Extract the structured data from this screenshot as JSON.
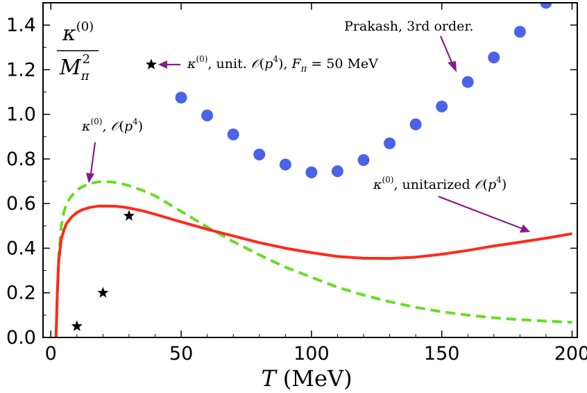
{
  "chart_data": {
    "type": "scatter",
    "title": "",
    "xlabel_var": "T",
    "xlabel_unit": "(MeV)",
    "ylabel_num": "κ⁽⁰⁾",
    "ylabel_den": "Mπ²",
    "xlim": [
      -3,
      202
    ],
    "ylim": [
      0.0,
      1.5
    ],
    "x_ticks": [
      0,
      50,
      100,
      150,
      200
    ],
    "x_tick_labels": [
      "0",
      "50",
      "100",
      "150",
      "200"
    ],
    "y_ticks": [
      0.0,
      0.2,
      0.4,
      0.6,
      0.8,
      1.0,
      1.2,
      1.4
    ],
    "y_tick_labels": [
      "0.0",
      "0.2",
      "0.4",
      "0.6",
      "0.8",
      "1.0",
      "1.2",
      "1.4"
    ],
    "series": [
      {
        "name": "Prakash, 3rd order",
        "kind": "points",
        "color": "#4a63e8",
        "x": [
          50,
          60,
          70,
          80,
          90,
          100,
          110,
          120,
          130,
          140,
          150,
          160,
          170,
          180,
          190
        ],
        "y": [
          1.075,
          0.995,
          0.91,
          0.82,
          0.775,
          0.74,
          0.745,
          0.795,
          0.87,
          0.955,
          1.035,
          1.145,
          1.255,
          1.37,
          1.5
        ]
      },
      {
        "name": "κ(0), unit. O(p4), Fπ = 50 MeV",
        "kind": "stars",
        "color": "#000000",
        "x": [
          10,
          20,
          30
        ],
        "y": [
          0.05,
          0.2,
          0.545
        ]
      },
      {
        "name": "κ(0), O(p4)",
        "kind": "dashed-line",
        "color": "#66dd22",
        "x": [
          2,
          2.5,
          3,
          4,
          5,
          6,
          8,
          10,
          12,
          15,
          18,
          20,
          23,
          25,
          28,
          30,
          35,
          40,
          45,
          50,
          55,
          60,
          70,
          80,
          90,
          100,
          110,
          120,
          130,
          140,
          150,
          160,
          170,
          180,
          190,
          200
        ],
        "y": [
          0.0,
          0.2,
          0.36,
          0.5,
          0.56,
          0.6,
          0.635,
          0.66,
          0.675,
          0.69,
          0.697,
          0.698,
          0.697,
          0.694,
          0.687,
          0.68,
          0.66,
          0.635,
          0.6,
          0.565,
          0.53,
          0.495,
          0.43,
          0.37,
          0.315,
          0.27,
          0.225,
          0.19,
          0.16,
          0.135,
          0.115,
          0.1,
          0.088,
          0.08,
          0.073,
          0.068
        ]
      },
      {
        "name": "κ(0), unitarized O(p4)",
        "kind": "line",
        "color": "#ff2a1a",
        "x": [
          2,
          2.5,
          3,
          4,
          5,
          6,
          8,
          10,
          12,
          15,
          18,
          20,
          25,
          28,
          30,
          35,
          40,
          50,
          60,
          70,
          80,
          90,
          100,
          110,
          120,
          130,
          140,
          150,
          160,
          170,
          180,
          190,
          200
        ],
        "y": [
          0.0,
          0.2,
          0.34,
          0.44,
          0.48,
          0.51,
          0.54,
          0.56,
          0.572,
          0.583,
          0.588,
          0.589,
          0.588,
          0.584,
          0.58,
          0.568,
          0.552,
          0.518,
          0.485,
          0.455,
          0.425,
          0.4,
          0.38,
          0.363,
          0.355,
          0.354,
          0.36,
          0.373,
          0.39,
          0.41,
          0.427,
          0.445,
          0.465
        ]
      }
    ],
    "annotations": [
      {
        "id": "prakash",
        "text": "Prakash, 3rd order."
      },
      {
        "id": "unit_fpi",
        "prefix": "κ(0), unit. ",
        "math": "O(p4), Fπ = 50 MeV"
      },
      {
        "id": "op4",
        "text": "κ(0), O(p4)"
      },
      {
        "id": "unitarized",
        "text": "κ(0), unitarized O(p4)"
      }
    ],
    "arrow_color": "#8a1a8a"
  }
}
